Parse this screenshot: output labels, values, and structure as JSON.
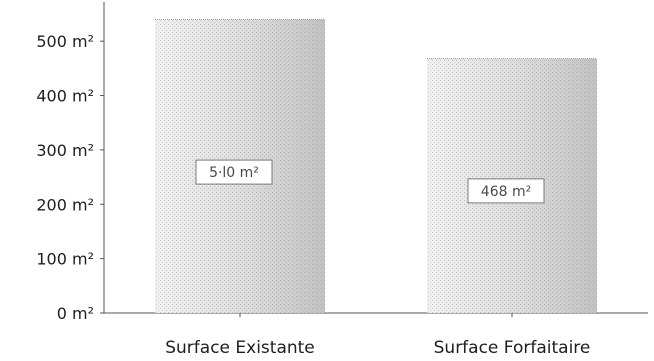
{
  "chart_data": {
    "type": "bar",
    "title": "",
    "xlabel": "",
    "ylabel": "",
    "categories": [
      "Surface Existante",
      "Surface Forfaitaire"
    ],
    "values": [
      540,
      468
    ],
    "data_labels": [
      "5·l0 m²",
      "468 m²"
    ],
    "unit": "m²",
    "ylim": [
      0,
      550
    ],
    "yticks": [
      0,
      100,
      200,
      300,
      400,
      500
    ],
    "ytick_labels": [
      "0 m²",
      "100 m²",
      "200 m²",
      "300 m²",
      "400 m²",
      "500 m²"
    ],
    "grid": false,
    "legend": "none"
  },
  "colors": {
    "bar_light": "#f1f1f1",
    "bar_mid": "#dcdcdc",
    "bar_dark": "#c2c2c2",
    "bar_stipple": "#9a9a9a",
    "axis": "#555555",
    "text": "#1e1e1e",
    "label_border": "#7a7a7a"
  }
}
